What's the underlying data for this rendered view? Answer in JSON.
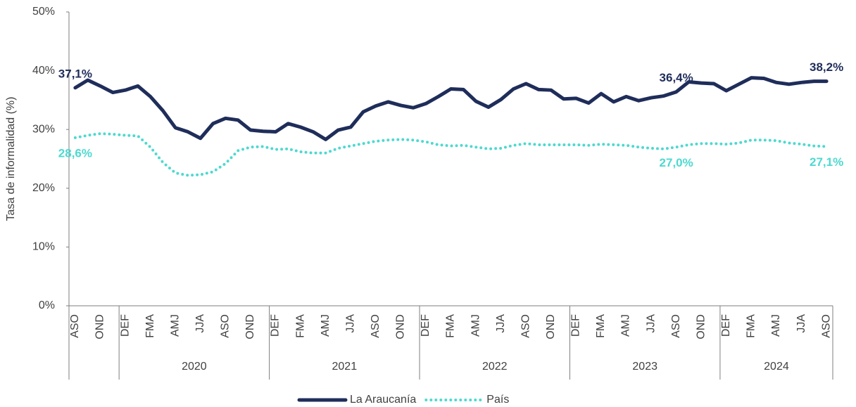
{
  "chart_data": {
    "type": "line",
    "y_label": "Tasa de informalidad (%)",
    "categories": [
      "ASO",
      null,
      "OND",
      null,
      "DEF",
      null,
      "FMA",
      null,
      "AMJ",
      null,
      "JJA",
      null,
      "ASO",
      null,
      "OND",
      null,
      "DEF",
      null,
      "FMA",
      null,
      "AMJ",
      null,
      "JJA",
      null,
      "ASO",
      null,
      "OND",
      null,
      "DEF",
      null,
      "FMA",
      null,
      "AMJ",
      null,
      "JJA",
      null,
      "ASO",
      null,
      "OND",
      null,
      "DEF",
      null,
      "FMA",
      null,
      "AMJ",
      null,
      "JJA",
      null,
      "ASO",
      null,
      "OND",
      null,
      "DEF",
      null,
      "FMA",
      null,
      "AMJ",
      null,
      "JJA",
      null,
      "ASO"
    ],
    "groups": [
      "2020",
      "2021",
      "2022",
      "2023",
      "2024"
    ],
    "ylim": [
      0,
      50
    ],
    "yticks": [
      {
        "value": 0,
        "label": "0%"
      },
      {
        "value": 10,
        "label": "10%"
      },
      {
        "value": 20,
        "label": "20%"
      },
      {
        "value": 30,
        "label": "30%"
      },
      {
        "value": 40,
        "label": "40%"
      },
      {
        "value": 50,
        "label": "50%"
      }
    ],
    "series": [
      {
        "name": "La Araucanía",
        "color": "#1f2d5a",
        "style": "solid",
        "values": [
          37.1,
          38.4,
          37.4,
          36.3,
          36.7,
          37.4,
          35.6,
          33.2,
          30.3,
          29.6,
          28.5,
          31.0,
          31.9,
          31.6,
          29.9,
          29.7,
          29.6,
          31.0,
          30.4,
          29.6,
          28.3,
          29.9,
          30.4,
          33.0,
          34.0,
          34.7,
          34.1,
          33.7,
          34.4,
          35.6,
          36.9,
          36.8,
          34.8,
          33.8,
          35.1,
          36.9,
          37.8,
          36.8,
          36.7,
          35.2,
          35.3,
          34.5,
          36.1,
          34.7,
          35.6,
          34.9,
          35.4,
          35.7,
          36.4,
          38.1,
          37.9,
          37.8,
          36.6,
          37.7,
          38.8,
          38.7,
          38.0,
          37.7,
          38.0,
          38.2,
          38.2
        ],
        "value_labels": [
          "37,1%",
          null,
          null,
          null,
          null,
          null,
          null,
          null,
          null,
          null,
          null,
          null,
          null,
          null,
          null,
          null,
          null,
          null,
          null,
          null,
          null,
          null,
          null,
          null,
          null,
          null,
          null,
          null,
          null,
          null,
          null,
          null,
          null,
          null,
          null,
          null,
          null,
          null,
          null,
          null,
          null,
          null,
          null,
          null,
          null,
          null,
          null,
          null,
          "36,4%",
          null,
          null,
          null,
          null,
          null,
          null,
          null,
          null,
          null,
          null,
          null,
          "38,2%"
        ]
      },
      {
        "name": "País",
        "color": "#4dd9d0",
        "style": "dotted",
        "values": [
          28.6,
          29.0,
          29.3,
          29.2,
          29.0,
          28.9,
          27.0,
          24.4,
          22.6,
          22.2,
          22.3,
          22.8,
          24.2,
          26.4,
          27.0,
          27.1,
          26.6,
          26.7,
          26.2,
          26.0,
          26.0,
          26.8,
          27.2,
          27.6,
          28.0,
          28.2,
          28.3,
          28.2,
          27.9,
          27.4,
          27.2,
          27.3,
          27.0,
          26.7,
          26.8,
          27.3,
          27.6,
          27.4,
          27.4,
          27.4,
          27.4,
          27.3,
          27.5,
          27.4,
          27.3,
          27.0,
          26.8,
          26.7,
          27.0,
          27.4,
          27.6,
          27.6,
          27.5,
          27.7,
          28.2,
          28.2,
          28.1,
          27.7,
          27.5,
          27.2,
          27.1
        ],
        "value_labels": [
          "28,6%",
          null,
          null,
          null,
          null,
          null,
          null,
          null,
          null,
          null,
          null,
          null,
          null,
          null,
          null,
          null,
          null,
          null,
          null,
          null,
          null,
          null,
          null,
          null,
          null,
          null,
          null,
          null,
          null,
          null,
          null,
          null,
          null,
          null,
          null,
          null,
          null,
          null,
          null,
          null,
          null,
          null,
          null,
          null,
          null,
          null,
          null,
          null,
          "27,0%",
          null,
          null,
          null,
          null,
          null,
          null,
          null,
          null,
          null,
          null,
          null,
          "27,1%"
        ]
      }
    ],
    "legend": "bottom"
  }
}
